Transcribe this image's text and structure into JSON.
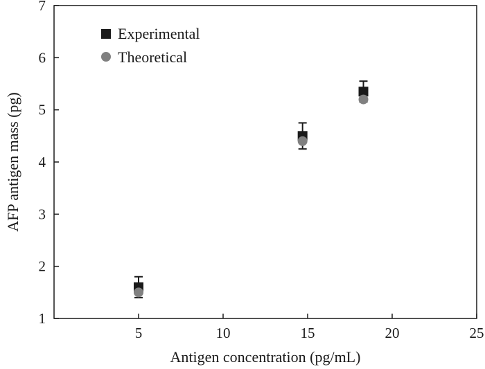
{
  "chart_data": {
    "type": "scatter",
    "title": "",
    "xlabel": "Antigen concentration (pg/mL)",
    "ylabel": "AFP antigen mass (pg)",
    "xlim": [
      0,
      25
    ],
    "ylim": [
      1,
      7
    ],
    "xticks": [
      5,
      10,
      15,
      20,
      25
    ],
    "yticks": [
      1,
      2,
      3,
      4,
      5,
      6,
      7
    ],
    "grid": false,
    "legend_position": "top-left",
    "series": [
      {
        "name": "Experimental",
        "marker": "square",
        "color": "#1a1a1a",
        "x": [
          5.0,
          14.7,
          18.3
        ],
        "y": [
          1.6,
          4.5,
          5.35
        ],
        "error": [
          0.2,
          0.25,
          0.2
        ]
      },
      {
        "name": "Theoretical",
        "marker": "circle",
        "color": "#808080",
        "x": [
          5.0,
          14.7,
          18.3
        ],
        "y": [
          1.5,
          4.4,
          5.2
        ]
      }
    ]
  }
}
